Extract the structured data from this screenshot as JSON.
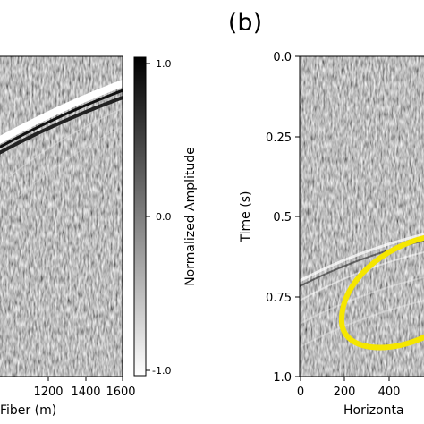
{
  "panel_label": "(b)",
  "chart_data": [
    {
      "type": "heatmap",
      "panel": "a",
      "xlabel": "Fiber (m)",
      "x_ticks": [
        1200,
        1400,
        1600
      ],
      "x_tick_labels": [
        "1200",
        "1400",
        "1600"
      ],
      "xlim_visible": [
        1070,
        1600
      ],
      "colorbar": {
        "label": "Normalized Amplitude",
        "range": [
          -1.0,
          1.0
        ],
        "ticks": [
          1.0,
          0.0,
          -1.0
        ],
        "tick_labels": [
          "1.0",
          "0.0",
          "-1.0"
        ],
        "colormap": [
          "#ffffff",
          "#000000"
        ]
      }
    },
    {
      "type": "heatmap",
      "panel": "b",
      "ylabel": "Time (s)",
      "xlabel": "Horizonta",
      "ylim": [
        1.0,
        0.0
      ],
      "y_ticks": [
        0.0,
        0.25,
        0.5,
        0.75,
        1.0
      ],
      "y_tick_labels": [
        "0.0",
        "0.25",
        "0.5",
        "0.75",
        "1.0"
      ],
      "x_ticks": [
        0,
        200,
        400
      ],
      "x_tick_labels": [
        "0",
        "200",
        "400"
      ],
      "annotation": {
        "shape": "ellipse",
        "color": "#f5e600"
      }
    }
  ]
}
